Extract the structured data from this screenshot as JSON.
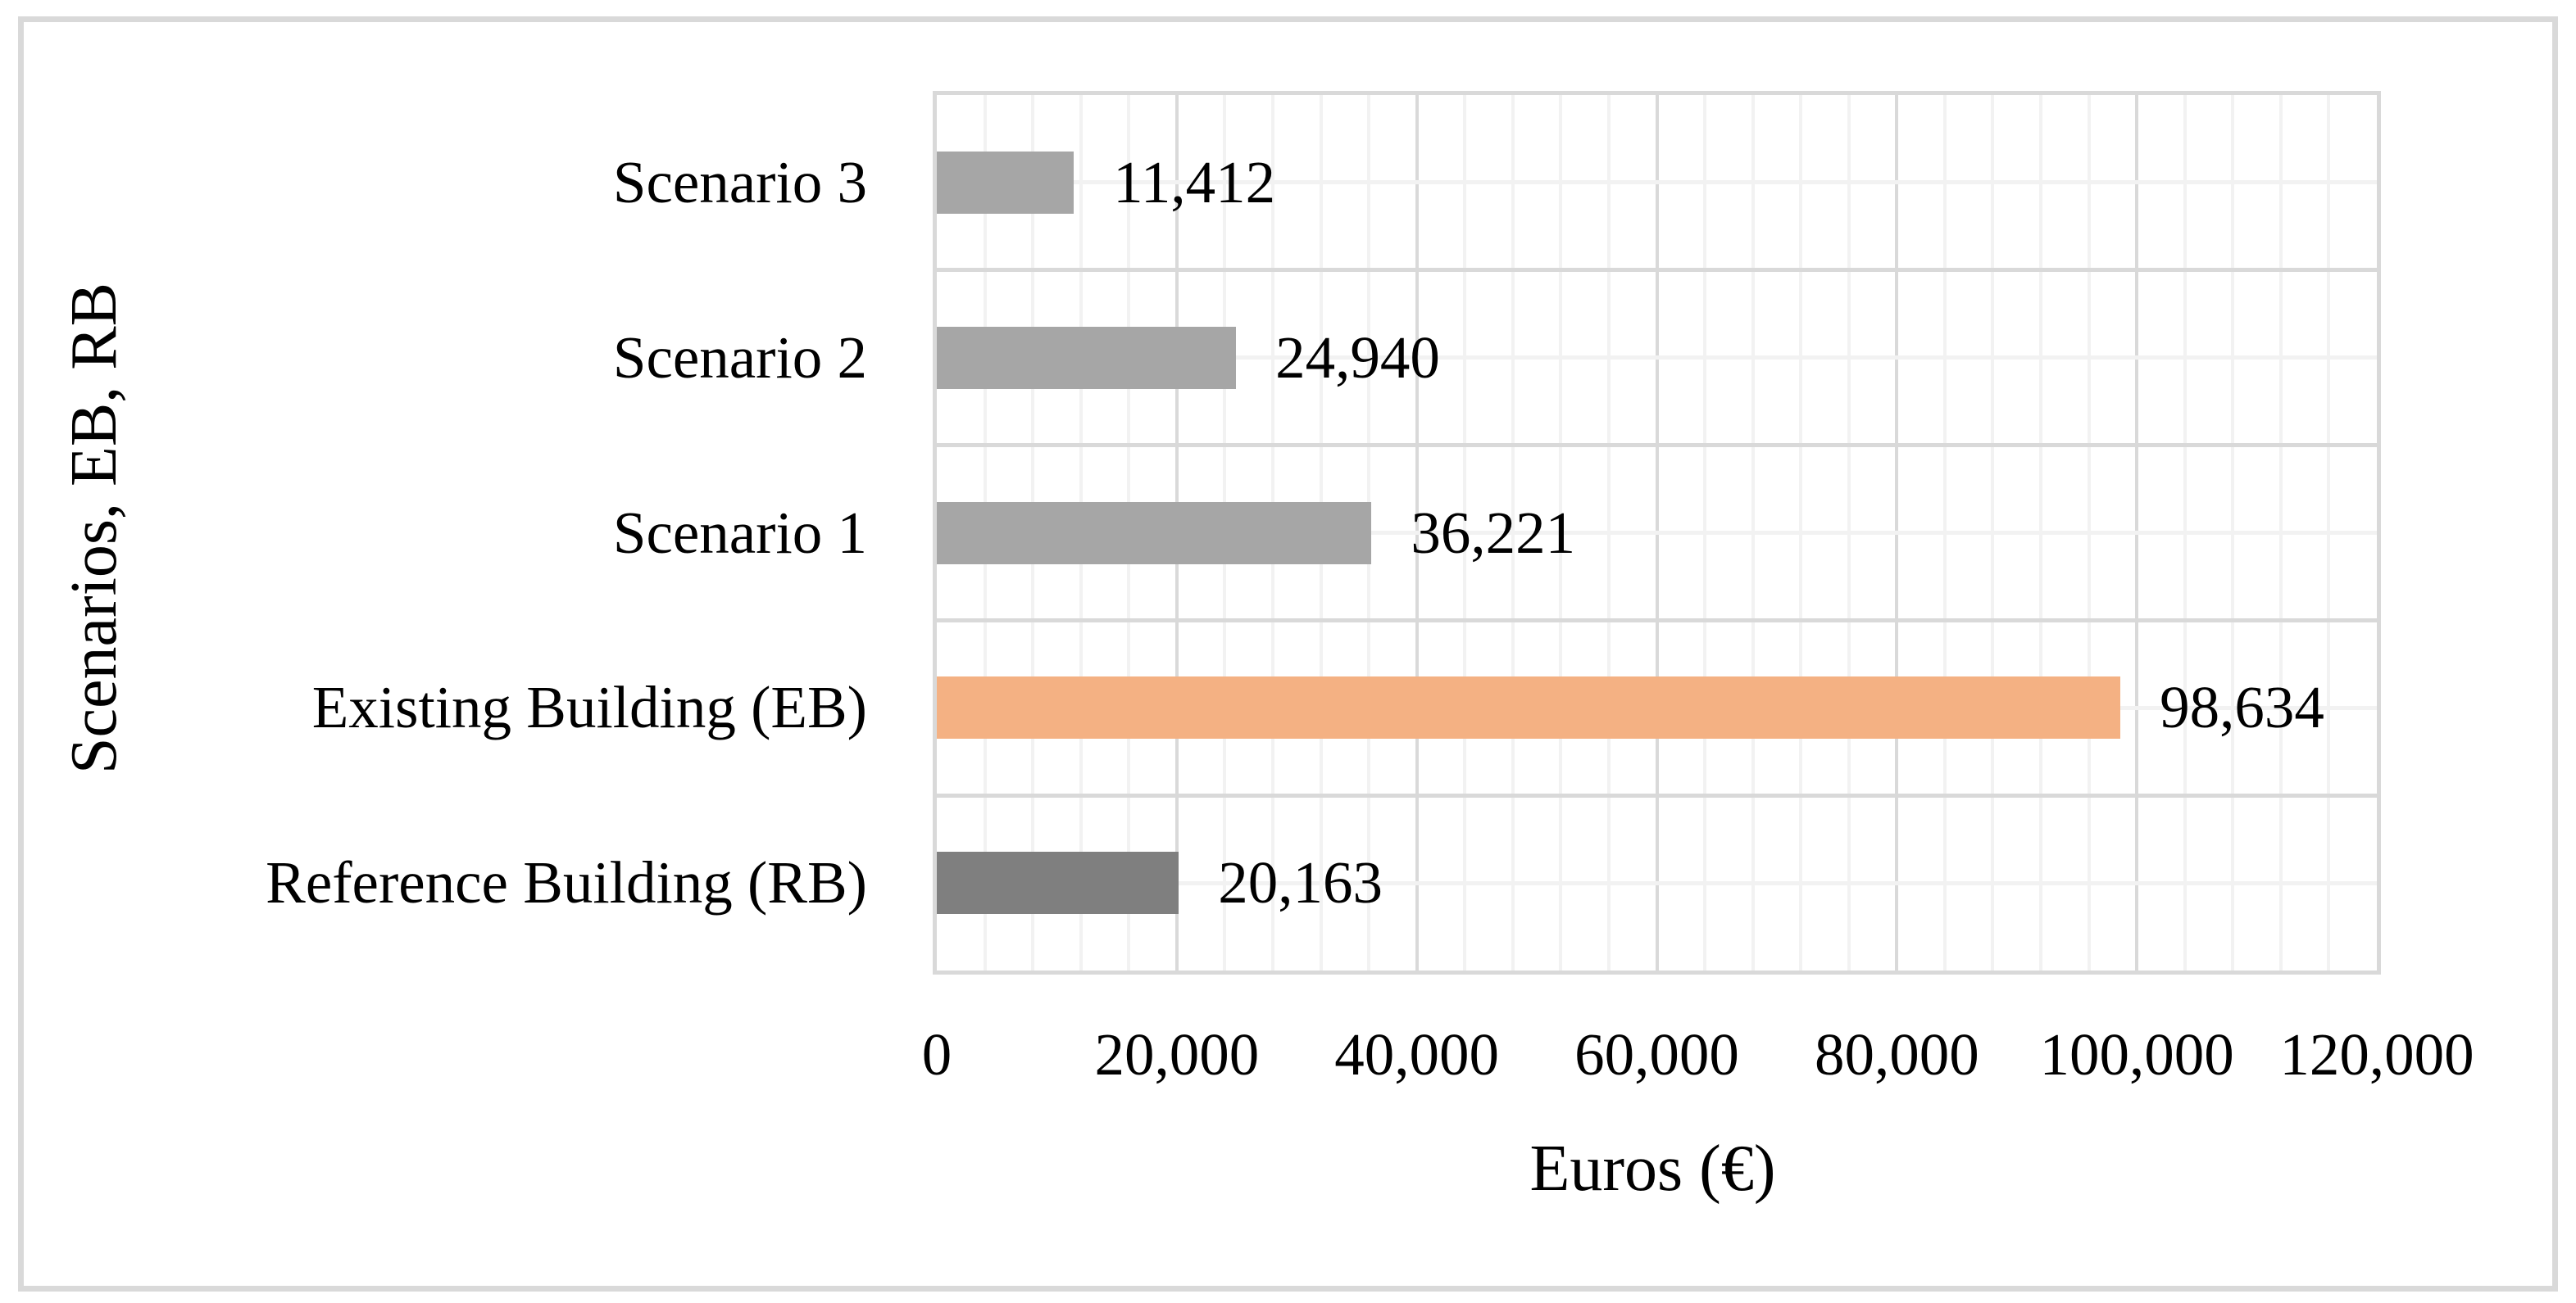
{
  "figure": {
    "background_color": "#ffffff",
    "frame_border_color": "#d9d9d9"
  },
  "chart_data": {
    "type": "bar",
    "orientation": "horizontal",
    "title": "",
    "xlabel": "Euros (€)",
    "ylabel": "Scenarios, EB, RB",
    "categories": [
      "Scenario 3",
      "Scenario 2",
      "Scenario 1",
      "Existing Building (EB)",
      "Reference Building (RB)"
    ],
    "values": [
      11412,
      24940,
      36221,
      98634,
      20163
    ],
    "data_labels": [
      "11,412",
      "24,940",
      "36,221",
      "98,634",
      "20,163"
    ],
    "bar_colors": [
      "#a6a6a6",
      "#a6a6a6",
      "#a6a6a6",
      "#f4b183",
      "#7f7f7f"
    ],
    "xlim": [
      0,
      120000
    ],
    "x_major_step": 20000,
    "x_minor_step": 4000,
    "x_tick_labels": [
      "0",
      "20,000",
      "40,000",
      "60,000",
      "80,000",
      "100,000",
      "120,000"
    ],
    "grid": {
      "major_color": "#d9d9d9",
      "minor_color": "#f2f2f2",
      "category_boundary_lines": true,
      "category_center_lines": true
    },
    "legend": "none",
    "text_color": "#000000"
  }
}
